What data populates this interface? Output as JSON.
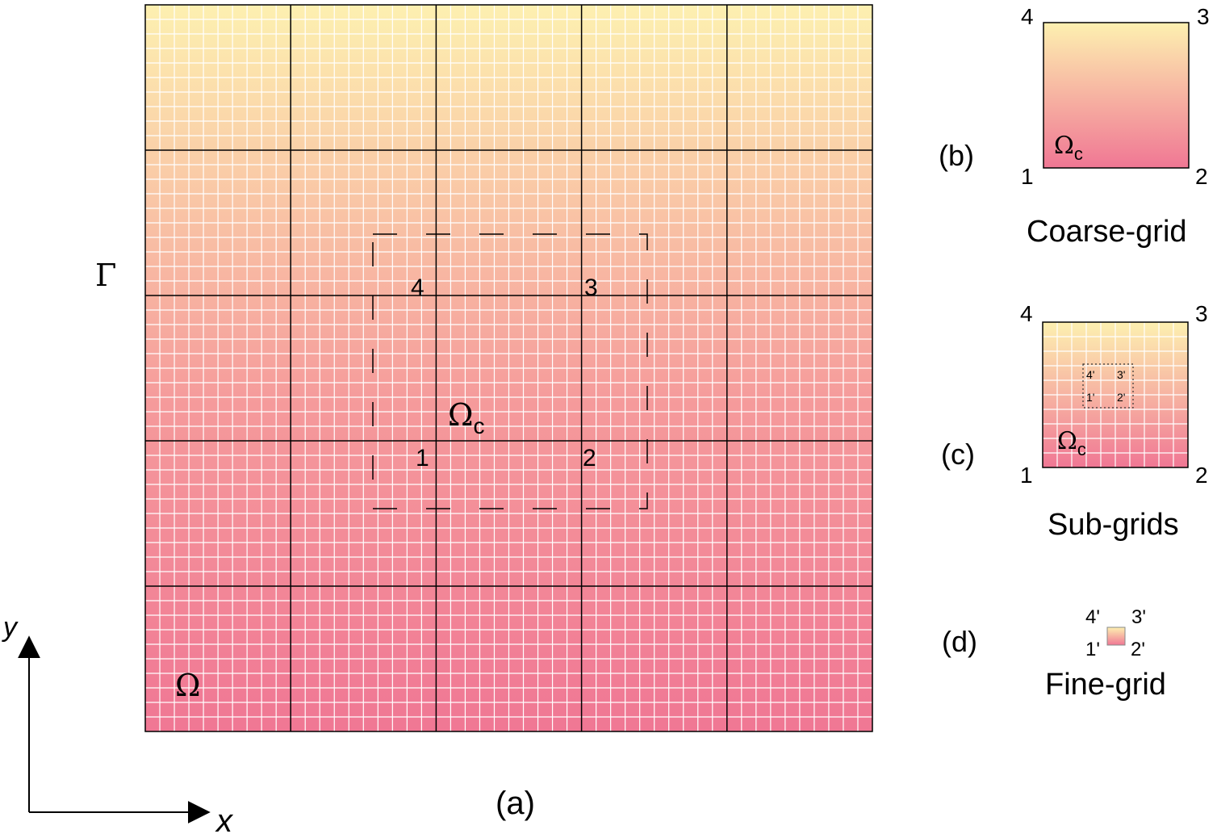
{
  "colors": {
    "gradient_top": "#fdf0b0",
    "gradient_bottom": "#f07794",
    "fine_line": "#ffffff",
    "coarse_line": "#000000"
  },
  "panel_a": {
    "caption": "(a)",
    "boundary_label": "Γ",
    "domain_label": "Ω",
    "coarse_cells_x": 5,
    "coarse_cells_y": 5,
    "fine_per_coarse": 10,
    "subdomain": {
      "label_main": "Ω",
      "label_sub": "c",
      "corners": [
        "1",
        "2",
        "3",
        "4"
      ]
    }
  },
  "axes": {
    "x_label": "x",
    "y_label": "y"
  },
  "panel_b": {
    "caption": "(b)",
    "title": "Coarse-grid",
    "label_main": "Ω",
    "label_sub": "c",
    "corners": [
      "1",
      "2",
      "3",
      "4"
    ]
  },
  "panel_c": {
    "caption": "(c)",
    "title": "Sub-grids",
    "label_main": "Ω",
    "label_sub": "c",
    "corners": [
      "1",
      "2",
      "3",
      "4"
    ],
    "inner_corners": [
      "1'",
      "2'",
      "3'",
      "4'"
    ],
    "fine_per_side": 10
  },
  "panel_d": {
    "caption": "(d)",
    "title": "Fine-grid",
    "corners": [
      "1'",
      "2'",
      "3'",
      "4'"
    ]
  }
}
